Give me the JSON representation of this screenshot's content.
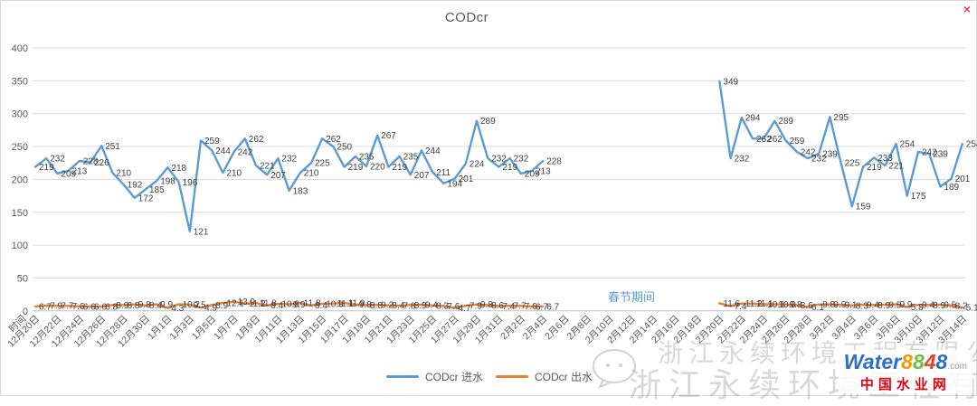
{
  "window": {
    "close_label": "×"
  },
  "chart_data": {
    "type": "line",
    "title": "CODcr",
    "x_axis_title": "时间",
    "ylim": [
      0,
      400
    ],
    "y_ticks": [
      0,
      50,
      100,
      150,
      200,
      250,
      300,
      350,
      400
    ],
    "grid": true,
    "legend_position": "bottom",
    "slots_total": 85,
    "x_tick_every_slots": 2,
    "x_tick_labels": [
      "12月20日",
      "12月22日",
      "12月24日",
      "12月26日",
      "12月28日",
      "12月30日",
      "1月1日",
      "1月3日",
      "1月5日",
      "1月7日",
      "1月9日",
      "1月11日",
      "1月13日",
      "1月15日",
      "1月17日",
      "1月19日",
      "1月21日",
      "1月23日",
      "1月25日",
      "1月27日",
      "1月29日",
      "1月31日",
      "2月2日",
      "2月4日",
      "2月6日",
      "2月8日",
      "2月10日",
      "2月12日",
      "2月14日",
      "2月16日",
      "2月18日",
      "2月20日",
      "2月22日",
      "2月24日",
      "2月26日",
      "2月28日",
      "3月2日",
      "3月4日",
      "3月6日",
      "3月8日",
      "3月10日",
      "3月12日",
      "3月14日"
    ],
    "annotation": {
      "text": "春节期间",
      "color": "#5B9BD5"
    },
    "series": [
      {
        "name": "CODcr 进水",
        "color": "#5B9BD5",
        "label_decimals": 0,
        "segments": [
          {
            "start_slot": 0,
            "values": [
              219,
              232,
              209,
              213,
              228,
              226,
              251,
              210,
              192,
              172,
              185,
              198,
              218,
              196,
              121,
              259,
              244,
              210,
              242,
              262,
              221,
              207,
              232,
              183,
              210,
              225,
              262,
              250,
              219,
              235,
              220,
              267,
              219,
              235,
              207,
              244,
              211,
              194,
              201,
              224,
              289,
              232,
              219,
              232,
              209,
              213,
              228
            ]
          },
          {
            "start_slot": 62,
            "values": [
              349,
              232,
              294,
              262,
              262,
              289,
              259,
              242,
              232,
              239,
              295,
              225,
              159,
              219,
              233,
              221,
              254,
              175,
              242,
              239,
              189,
              201,
              254
            ]
          }
        ]
      },
      {
        "name": "CODcr 出水",
        "color": "#ED7D31",
        "label_decimals": 1,
        "segments": [
          {
            "start_slot": 0,
            "values": [
              6.7,
              7.9,
              7.7,
              7.6,
              6.6,
              6.6,
              6.8,
              8.9,
              8.8,
              9.8,
              8.4,
              9.9,
              4.3,
              10.2,
              9.5,
              4.9,
              8.9,
              12.1,
              13.9,
              11.2,
              11.8,
              8.4,
              10.8,
              9.9,
              11.8,
              8.4,
              10.9,
              11.1,
              11.9,
              9.8,
              8.8,
              9.2,
              8.4,
              7.8,
              8.9,
              9.4,
              8.3,
              7.6,
              4.7,
              7.9,
              9.8,
              8.6,
              7.4,
              7.7,
              7.6,
              6.7,
              6.7
            ]
          },
          {
            "start_slot": 62,
            "values": [
              11.6,
              7.4,
              11.2,
              11.1,
              10.1,
              10.0,
              9.8,
              8.6,
              6.1,
              9.8,
              9.9,
              9.1,
              8.3,
              9.4,
              8.9,
              9.5,
              9.9,
              5.8,
              9.4,
              8.9,
              9.5,
              8.2,
              5.1
            ]
          }
        ]
      }
    ]
  },
  "legend": {
    "items": [
      {
        "label": "CODcr 进水",
        "color": "#5B9BD5"
      },
      {
        "label": "CODcr 出水",
        "color": "#ED7D31"
      }
    ]
  },
  "watermark": {
    "company": "浙江永续环境工程有限公司",
    "logo_word": "Water",
    "logo_d1": "8",
    "logo_d2": "8",
    "logo_d3": "4",
    "logo_d4": "8",
    "logo_suffix": ".com",
    "logo_subtitle": "中国水业网"
  }
}
